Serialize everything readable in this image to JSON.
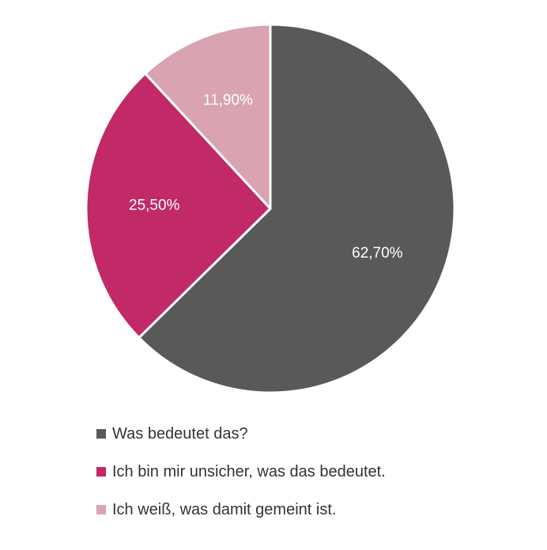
{
  "chart_data": {
    "type": "pie",
    "categories": [
      "Was bedeutet das?",
      "Ich bin mir unsicher, was das bedeutet.",
      "Ich weiß, was damit gemeint ist."
    ],
    "values": [
      62.7,
      25.5,
      11.9
    ],
    "labels": [
      "62,70%",
      "25,50%",
      "11,90%"
    ],
    "colors": [
      "#595959",
      "#c12a66",
      "#d9a3b2"
    ],
    "legend_position": "bottom"
  }
}
